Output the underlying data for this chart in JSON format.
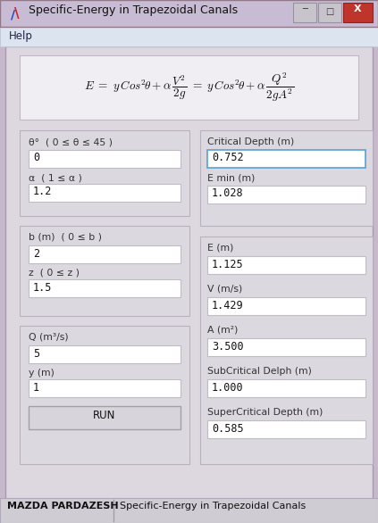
{
  "title": "Specific-Energy in Trapezoidal Canals",
  "menu_item": "Help",
  "left_panel": {
    "group1_label1": "θ°  ( 0 ≤ θ ≤ 45 )",
    "group1_val1": "0",
    "group1_label2": "α  ( 1 ≤ α )",
    "group1_val2": "1.2",
    "group2_label1": "b (m)  ( 0 ≤ b )",
    "group2_val1": "2",
    "group2_label2": "z  ( 0 ≤ z )",
    "group2_val2": "1.5",
    "group3_label1": "Q (m³/s)",
    "group3_val1": "5",
    "group3_label2": "y (m)",
    "group3_val2": "1",
    "button": "RUN"
  },
  "right_panel": {
    "r1_label": "Critical Depth (m)",
    "r1_val": "0.752",
    "r2_label": "E min (m)",
    "r2_val": "1.028",
    "r3_label": "E (m)",
    "r3_val": "1.125",
    "r4_label": "V (m/s)",
    "r4_val": "1.429",
    "r5_label": "A (m²)",
    "r5_val": "3.500",
    "r6_label": "SubCritical Delph (m)",
    "r6_val": "1.000",
    "r7_label": "SuperCritical Depth (m)",
    "r7_val": "0.585"
  },
  "footer_left": "MAZDA PARDAZESH",
  "footer_right": "Specific-Energy in Trapezoidal Canals",
  "win_bg": "#c8b8cc",
  "content_bg": "#ddd8e0",
  "formula_bg": "#f0eef2",
  "groupbox_bg": "#dcd8e0",
  "field_bg": "#ffffff",
  "field_border_normal": "#c0bcc4",
  "field_border_active": "#5a9fd4",
  "menubar_bg": "#dce4f0",
  "titlebar_bg": "#c8bcd4",
  "footer_bg": "#d0ccD4",
  "btn_bg": "#d8d4dc",
  "btn_border": "#a0a0a8"
}
